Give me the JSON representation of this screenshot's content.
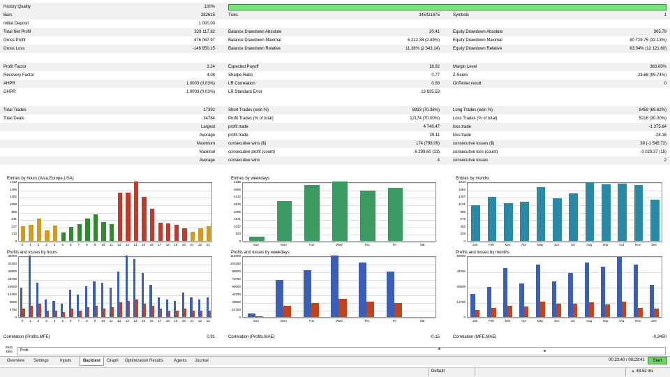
{
  "history_quality": {
    "label": "History Quality",
    "value": "100%",
    "fill": 1.0
  },
  "stats": [
    {
      "alt": true,
      "c1": [
        "Bars",
        "282615"
      ],
      "c2": [
        "Ticks",
        "345421675"
      ],
      "c3": [
        "Symbols",
        "1"
      ]
    },
    {
      "alt": false,
      "c1": [
        "Initial Deposit",
        "1 000.00"
      ],
      "c2": [
        "",
        ""
      ],
      "c3": [
        "",
        ""
      ]
    },
    {
      "alt": true,
      "c1": [
        "Total Net Profit",
        "329 117.82"
      ],
      "c2": [
        "Balance Drawdown Absolute",
        "20.41"
      ],
      "c3": [
        "Equity Drawdown Absolute",
        "305.79"
      ]
    },
    {
      "alt": false,
      "c1": [
        "Gross Profit",
        "476 067.97"
      ],
      "c2": [
        "Balance Drawdown Maximal",
        "6 212.38 (2.49%)"
      ],
      "c3": [
        "Equity Drawdown Maximal",
        "80 729.75 (32.13%)"
      ]
    },
    {
      "alt": true,
      "c1": [
        "Gross Loss",
        "-146 950.15"
      ],
      "c2": [
        "Balance Drawdown Relative",
        "11.38% (2 343.14)"
      ],
      "c3": [
        "Equity Drawdown Relative",
        "63.04% (12 121.60)"
      ]
    },
    {
      "blank": true
    },
    {
      "alt": true,
      "c1": [
        "Profit Factor",
        "3.24"
      ],
      "c2": [
        "Expected Payoff",
        "18.92"
      ],
      "c3": [
        "Margin Level",
        "363.60%"
      ]
    },
    {
      "alt": false,
      "c1": [
        "Recovery Factor",
        "4.08"
      ],
      "c2": [
        "Sharpe Ratio",
        "0.77"
      ],
      "c3": [
        "Z-Score",
        "-23.68 (99.74%)"
      ]
    },
    {
      "alt": true,
      "c1": [
        "AHPR",
        "1.0003 (0.03%)"
      ],
      "c2": [
        "LR Correlation",
        "0.99"
      ],
      "c3": [
        "OnTester result",
        "0"
      ]
    },
    {
      "alt": false,
      "c1": [
        "GHPR",
        "1.0003 (0.03%)"
      ],
      "c2": [
        "LR Standard Error",
        "13 935.53"
      ],
      "c3": [
        "",
        ""
      ]
    },
    {
      "blank": true
    },
    {
      "alt": true,
      "c1": [
        "Total Trades",
        "17392"
      ],
      "c2": [
        "Short Trades (won %)",
        "8933 (70.36%)"
      ],
      "c3": [
        "Long Trades (won %)",
        "8459 (69.62%)"
      ]
    },
    {
      "alt": false,
      "c1": [
        "Total Deals",
        "34784"
      ],
      "c2": [
        "Profit Trades (% of total)",
        "12174 (70.00%)"
      ],
      "c3": [
        "Loss Trades (% of total)",
        "5218 (30.00%)"
      ]
    },
    {
      "alt": true,
      "c1r": "Largest",
      "c2": [
        "profit trade",
        "4 740.47"
      ],
      "c3": [
        "loss trade",
        "-1 375.64"
      ]
    },
    {
      "alt": false,
      "c1r": "Average",
      "c2": [
        "profit trade",
        "39.11"
      ],
      "c3": [
        "loss trade",
        "-28.16"
      ]
    },
    {
      "alt": true,
      "c1r": "Maximum",
      "c2": [
        "consecutive wins ($)",
        "174 (798.09)"
      ],
      "c3": [
        "consecutive losses ($)",
        "39 (-1 545.72)"
      ]
    },
    {
      "alt": false,
      "c1r": "Maximal",
      "c2": [
        "consecutive profit (count)",
        "6 299.60 (31)"
      ],
      "c3": [
        "consecutive loss (count)",
        "-3 029.37 (15)"
      ]
    },
    {
      "alt": true,
      "c1r": "Average",
      "c2": [
        "consecutive wins",
        "4"
      ],
      "c3": [
        "consecutive losses",
        "2"
      ]
    }
  ],
  "charts": [
    {
      "id": "entries-hours",
      "title": "Entries by hours (Asia,Europe,USA)",
      "type": "bar",
      "ylim": [
        0,
        1710
      ],
      "yticks": [
        "1710",
        "1496",
        "1282",
        "1068",
        "855",
        "641",
        "427",
        "213",
        "0"
      ],
      "x": [
        "0",
        "1",
        "2",
        "3",
        "4",
        "5",
        "6",
        "7",
        "8",
        "9",
        "10",
        "11",
        "12",
        "13",
        "14",
        "15",
        "16",
        "17",
        "18",
        "19",
        "20",
        "21",
        "22",
        "23"
      ],
      "values": [
        430,
        460,
        640,
        310,
        440,
        240,
        400,
        480,
        650,
        770,
        550,
        480,
        1390,
        1390,
        1710,
        1270,
        930,
        520,
        500,
        470,
        360,
        270,
        360,
        420
      ],
      "colors": [
        "#d29a1f",
        "#d29a1f",
        "#d29a1f",
        "#d29a1f",
        "#d29a1f",
        "#2f8a2f",
        "#2f8a2f",
        "#2f8a2f",
        "#2f8a2f",
        "#2f8a2f",
        "#2f8a2f",
        "#2f8a2f",
        "#c0392b",
        "#c0392b",
        "#c0392b",
        "#c0392b",
        "#c0392b",
        "#c0392b",
        "#c0392b",
        "#c0392b",
        "#c0392b",
        "#d29a1f",
        "#d29a1f",
        "#d29a1f"
      ]
    },
    {
      "id": "entries-weekdays",
      "title": "Entries by weekdays",
      "type": "bar",
      "ylim": [
        0,
        4195
      ],
      "yticks": [
        "4195",
        "3666",
        "3142",
        "2618",
        "2095",
        "1571",
        "1047",
        "523",
        "0"
      ],
      "x": [
        "Sun",
        "Mon",
        "Tue",
        "Wed",
        "Thu",
        "Fri",
        "Sat"
      ],
      "values": [
        280,
        2820,
        3960,
        4195,
        3560,
        3740,
        0
      ],
      "colors": [
        "#3a9a62",
        "#3a9a62",
        "#3a9a62",
        "#3a9a62",
        "#3a9a62",
        "#3a9a62",
        "#3a9a62"
      ]
    },
    {
      "id": "entries-months",
      "title": "Entries by months",
      "type": "bar",
      "ylim": [
        0,
        1810
      ],
      "yticks": [
        "1810",
        "1583",
        "1357",
        "1131",
        "905",
        "678",
        "452",
        "226",
        "0"
      ],
      "x": [
        "Jan",
        "Feb",
        "Mar",
        "Apr",
        "May",
        "Jun",
        "Jul",
        "Aug",
        "Sep",
        "Oct",
        "Nov",
        "Dec"
      ],
      "values": [
        1080,
        1340,
        1150,
        1190,
        1630,
        1300,
        1450,
        1790,
        1720,
        1740,
        1700,
        1260
      ],
      "colors": [
        "#2a8aa5",
        "#2a8aa5",
        "#2a8aa5",
        "#2a8aa5",
        "#2a8aa5",
        "#2a8aa5",
        "#2a8aa5",
        "#2a8aa5",
        "#2a8aa5",
        "#2a8aa5",
        "#2a8aa5",
        "#2a8aa5"
      ]
    },
    {
      "id": "pl-hours",
      "title": "Profits and losses by hours",
      "type": "bar2",
      "ylim": [
        0,
        38000
      ],
      "yticks": [
        "38000",
        "33250",
        "28500",
        "23750",
        "19000",
        "14250",
        "9500",
        "4750",
        "0"
      ],
      "x": [
        "0",
        "1",
        "2",
        "3",
        "4",
        "5",
        "6",
        "7",
        "8",
        "9",
        "10",
        "11",
        "12",
        "13",
        "14",
        "15",
        "16",
        "17",
        "18",
        "19",
        "20",
        "21",
        "22",
        "23"
      ],
      "profits": [
        18000,
        38000,
        21000,
        11000,
        10000,
        8000,
        17000,
        14000,
        19000,
        22000,
        21000,
        18000,
        28000,
        38000,
        36000,
        27000,
        20000,
        12000,
        11000,
        10000,
        15000,
        12000,
        11000,
        12000
      ],
      "losses": [
        5000,
        7000,
        8000,
        4000,
        4000,
        3000,
        5000,
        4000,
        6000,
        7000,
        5000,
        6000,
        9000,
        10000,
        11000,
        8000,
        7000,
        5000,
        4000,
        4000,
        5000,
        4000,
        4000,
        4000
      ]
    },
    {
      "id": "pl-weekdays",
      "title": "Profits and losses by weekdays",
      "type": "bar2",
      "ylim": [
        0,
        118000
      ],
      "yticks": [
        "118000",
        "103250",
        "88500",
        "73750",
        "59000",
        "44250",
        "29500",
        "14750",
        "0"
      ],
      "x": [
        "Sun",
        "Mon",
        "Tue",
        "Wed",
        "Thu",
        "Fri",
        "Sat"
      ],
      "profits": [
        7000,
        71000,
        90000,
        118000,
        104000,
        87000,
        0
      ],
      "losses": [
        2000,
        22000,
        27000,
        35000,
        30000,
        27000,
        0
      ]
    },
    {
      "id": "pl-months",
      "title": "Profits and losses by months",
      "type": "bar2",
      "ylim": [
        0,
        59000
      ],
      "yticks": [
        "59000",
        "44250",
        "29500",
        "14750",
        "0"
      ],
      "x": [
        "Jan",
        "Feb",
        "Mar",
        "Apr",
        "May",
        "Jun",
        "Jul",
        "Aug",
        "Sep",
        "Oct",
        "Nov",
        "Dec"
      ],
      "profits": [
        22000,
        29000,
        47000,
        32000,
        50000,
        34000,
        42000,
        52000,
        48000,
        58000,
        50000,
        31000
      ],
      "losses": [
        7000,
        9000,
        11000,
        10000,
        15000,
        13000,
        13000,
        14000,
        12000,
        15000,
        9000,
        8000
      ],
      "profit_color": "#3b5fb5",
      "loss_color": "#c0441c"
    }
  ],
  "correlations": [
    {
      "label": "Correlation (Profits,MFE)",
      "value": "0.91"
    },
    {
      "label": "Correlation (Profits,MAE)",
      "value": "-0.15"
    },
    {
      "label": "Correlation (MFE,MAE)",
      "value": "-0.3450"
    }
  ],
  "profit_strip": {
    "label": "Profit",
    "axis_values": [
      "8940",
      "4800"
    ]
  },
  "tabs": [
    "Overview",
    "Settings",
    "Inputs",
    "Backtest",
    "Graph",
    "Optimization Results",
    "Agents",
    "Journal"
  ],
  "active_tab": "Backtest",
  "time": "00:23:40 / 00:23:41",
  "start_label": "Start",
  "status": {
    "profile": "Default",
    "ping": "48.52 ms"
  }
}
